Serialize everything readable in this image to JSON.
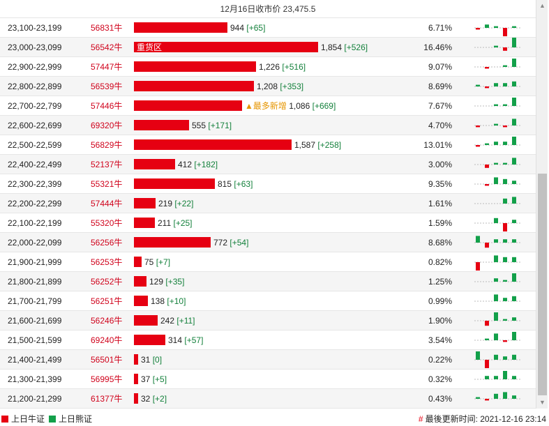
{
  "header": {
    "title": "12月16日收市价 23,475.5"
  },
  "colors": {
    "bull": "#e60012",
    "bear": "#13a04a"
  },
  "max_volume": 1854,
  "rows": [
    {
      "range": "23,100-23,199",
      "code": "56831牛",
      "volume": 944,
      "volume_text": "944",
      "change": "[+65]",
      "note": "",
      "bar_label": "",
      "pct": "6.71%",
      "spark": [
        -1,
        2,
        1,
        -5,
        1
      ]
    },
    {
      "range": "23,000-23,099",
      "code": "56542牛",
      "volume": 1854,
      "volume_text": "1,854",
      "change": "[+526]",
      "note": "",
      "bar_label": "重货区",
      "pct": "16.46%",
      "spark": [
        0,
        0,
        1,
        -2,
        6
      ]
    },
    {
      "range": "22,900-22,999",
      "code": "57447牛",
      "volume": 1226,
      "volume_text": "1,226",
      "change": "[+516]",
      "note": "",
      "bar_label": "",
      "pct": "9.07%",
      "spark": [
        0,
        -1,
        0,
        1,
        5
      ]
    },
    {
      "range": "22,800-22,899",
      "code": "56539牛",
      "volume": 1208,
      "volume_text": "1,208",
      "change": "[+353]",
      "note": "",
      "bar_label": "",
      "pct": "8.69%",
      "spark": [
        1,
        -1,
        2,
        2,
        3
      ]
    },
    {
      "range": "22,700-22,799",
      "code": "57446牛",
      "volume": 1086,
      "volume_text": "1,086",
      "change": "[+669]",
      "note": "▲最多新增",
      "bar_label": "",
      "pct": "7.67%",
      "spark": [
        0,
        0,
        1,
        1,
        5
      ]
    },
    {
      "range": "22,600-22,699",
      "code": "69320牛",
      "volume": 555,
      "volume_text": "555",
      "change": "[+171]",
      "note": "",
      "bar_label": "",
      "pct": "4.70%",
      "spark": [
        -1,
        0,
        1,
        -1,
        4
      ]
    },
    {
      "range": "22,500-22,599",
      "code": "56829牛",
      "volume": 1587,
      "volume_text": "1,587",
      "change": "[+258]",
      "note": "",
      "bar_label": "",
      "pct": "13.01%",
      "spark": [
        -1,
        1,
        2,
        2,
        5
      ]
    },
    {
      "range": "22,400-22,499",
      "code": "52137牛",
      "volume": 412,
      "volume_text": "412",
      "change": "[+182]",
      "note": "",
      "bar_label": "",
      "pct": "3.00%",
      "spark": [
        0,
        -2,
        1,
        1,
        4
      ]
    },
    {
      "range": "22,300-22,399",
      "code": "55321牛",
      "volume": 815,
      "volume_text": "815",
      "change": "[+63]",
      "note": "",
      "bar_label": "",
      "pct": "9.35%",
      "spark": [
        0,
        -1,
        4,
        3,
        2
      ]
    },
    {
      "range": "22,200-22,299",
      "code": "57444牛",
      "volume": 219,
      "volume_text": "219",
      "change": "[+22]",
      "note": "",
      "bar_label": "",
      "pct": "1.61%",
      "spark": [
        0,
        0,
        0,
        3,
        4
      ]
    },
    {
      "range": "22,100-22,199",
      "code": "55320牛",
      "volume": 211,
      "volume_text": "211",
      "change": "[+25]",
      "note": "",
      "bar_label": "",
      "pct": "1.59%",
      "spark": [
        0,
        0,
        3,
        -5,
        2
      ]
    },
    {
      "range": "22,000-22,099",
      "code": "56256牛",
      "volume": 772,
      "volume_text": "772",
      "change": "[+54]",
      "note": "",
      "bar_label": "",
      "pct": "8.68%",
      "spark": [
        4,
        -3,
        2,
        2,
        2
      ]
    },
    {
      "range": "21,900-21,999",
      "code": "56253牛",
      "volume": 75,
      "volume_text": "75",
      "change": "[+7]",
      "note": "",
      "bar_label": "",
      "pct": "0.82%",
      "spark": [
        -5,
        0,
        4,
        3,
        3
      ]
    },
    {
      "range": "21,800-21,899",
      "code": "56252牛",
      "volume": 129,
      "volume_text": "129",
      "change": "[+35]",
      "note": "",
      "bar_label": "",
      "pct": "1.25%",
      "spark": [
        0,
        0,
        2,
        1,
        5
      ]
    },
    {
      "range": "21,700-21,799",
      "code": "56251牛",
      "volume": 138,
      "volume_text": "138",
      "change": "[+10]",
      "note": "",
      "bar_label": "",
      "pct": "0.99%",
      "spark": [
        0,
        0,
        4,
        2,
        3
      ]
    },
    {
      "range": "21,600-21,699",
      "code": "56246牛",
      "volume": 242,
      "volume_text": "242",
      "change": "[+11]",
      "note": "",
      "bar_label": "",
      "pct": "1.90%",
      "spark": [
        0,
        -3,
        5,
        1,
        2
      ]
    },
    {
      "range": "21,500-21,599",
      "code": "69240牛",
      "volume": 314,
      "volume_text": "314",
      "change": "[+57]",
      "note": "",
      "bar_label": "",
      "pct": "3.54%",
      "spark": [
        0,
        1,
        4,
        -1,
        5
      ]
    },
    {
      "range": "21,400-21,499",
      "code": "56501牛",
      "volume": 31,
      "volume_text": "31",
      "change": "[0]",
      "note": "",
      "bar_label": "",
      "pct": "0.22%",
      "spark": [
        5,
        -5,
        3,
        2,
        3
      ]
    },
    {
      "range": "21,300-21,399",
      "code": "56995牛",
      "volume": 37,
      "volume_text": "37",
      "change": "[+5]",
      "note": "",
      "bar_label": "",
      "pct": "0.32%",
      "spark": [
        0,
        2,
        2,
        5,
        2
      ]
    },
    {
      "range": "21,200-21,299",
      "code": "61377牛",
      "volume": 32,
      "volume_text": "32",
      "change": "[+2]",
      "note": "",
      "bar_label": "",
      "pct": "0.43%",
      "spark": [
        1,
        -1,
        3,
        4,
        2
      ]
    }
  ],
  "footer": {
    "legend_bull": "上日牛证",
    "legend_bear": "上日熊证",
    "updated_hash": "#",
    "updated_text": "最後更新时间: 2021-12-16 23:14"
  },
  "scrollbar": {
    "up_icon": "▲",
    "down_icon": "▼"
  }
}
